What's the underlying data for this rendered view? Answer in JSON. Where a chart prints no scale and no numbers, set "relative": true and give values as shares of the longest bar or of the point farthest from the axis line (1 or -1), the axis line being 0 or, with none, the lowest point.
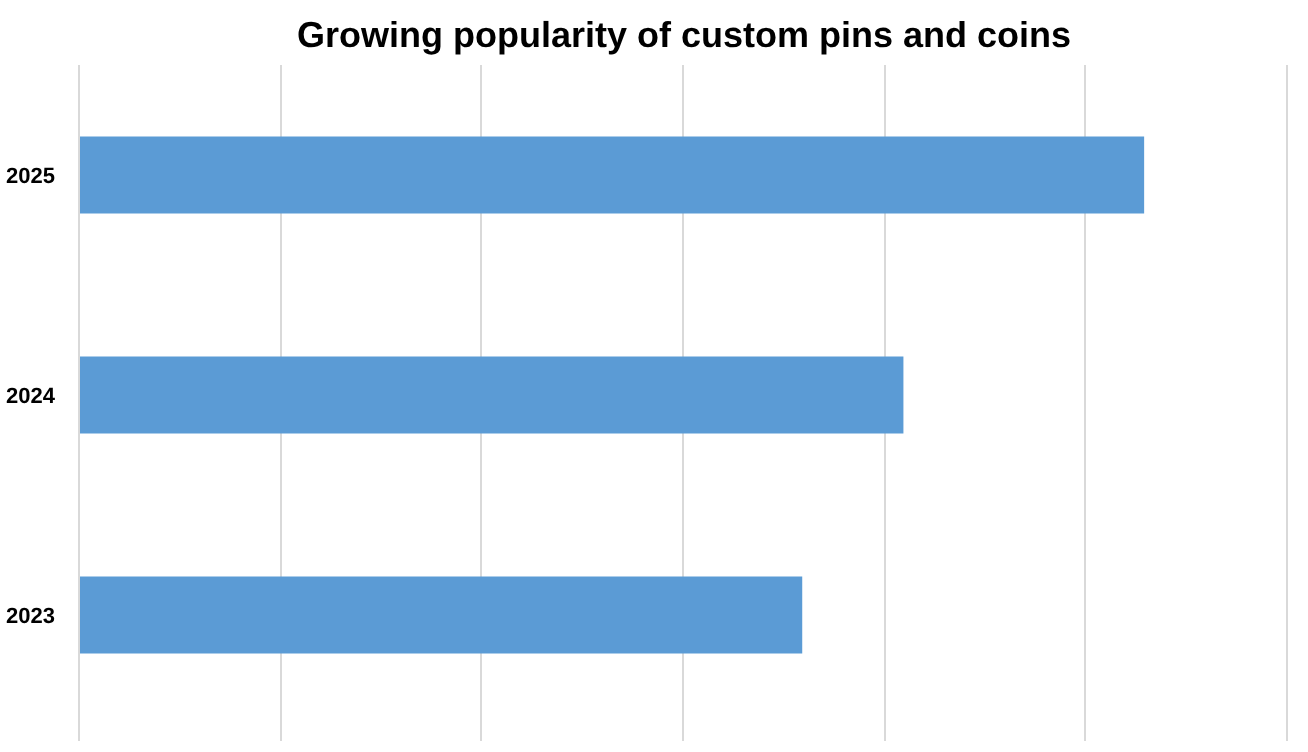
{
  "chart_data": {
    "type": "bar",
    "title": "Growing popularity of custom pins and coins",
    "orientation": "horizontal",
    "relative": true,
    "categories": [
      "2025",
      "2024",
      "2023"
    ],
    "values": [
      1,
      0.774,
      0.679
    ],
    "color": "#5b9bd5",
    "grid": "x"
  }
}
